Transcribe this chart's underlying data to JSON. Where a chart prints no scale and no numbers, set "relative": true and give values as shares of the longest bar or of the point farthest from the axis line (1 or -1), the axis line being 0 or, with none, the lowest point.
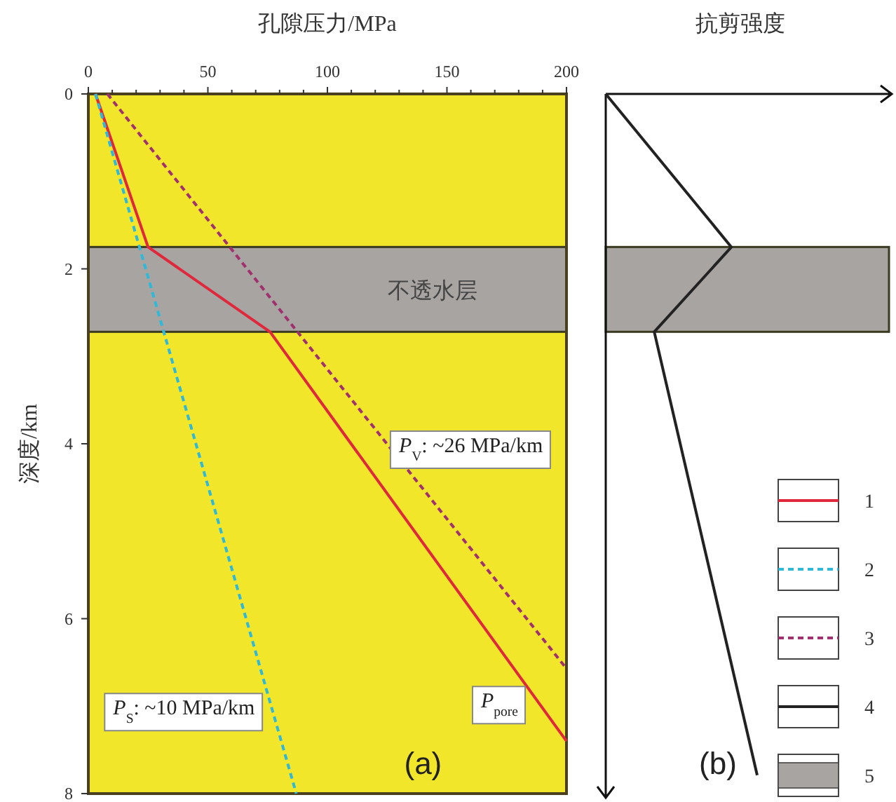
{
  "chart_data": [
    {
      "type": "line",
      "orientation": "horizontal",
      "xlabel": "孔隙压力/MPa",
      "ylabel": "深度/km",
      "xlim": [
        0,
        200
      ],
      "ylim": [
        8,
        0
      ],
      "xticks": [
        0,
        {
          "value": 10,
          "label": null
        },
        {
          "value": 20,
          "label": null
        },
        {
          "value": 30,
          "label": null
        },
        {
          "value": 40,
          "label": null
        },
        50,
        {
          "value": 60,
          "label": null
        },
        {
          "value": 70,
          "label": null
        },
        {
          "value": 80,
          "label": null
        },
        {
          "value": 90,
          "label": null
        },
        100,
        {
          "value": 110,
          "label": null
        },
        {
          "value": 120,
          "label": null
        },
        {
          "value": 130,
          "label": null
        },
        {
          "value": 140,
          "label": null
        },
        150,
        {
          "value": 160,
          "label": null
        },
        {
          "value": 170,
          "label": null
        },
        {
          "value": 180,
          "label": null
        },
        {
          "value": 190,
          "label": null
        },
        200
      ],
      "yticks": [
        0,
        2,
        4,
        6,
        8
      ],
      "legend": "right",
      "series": [
        {
          "name": "1",
          "color": "#e0283c",
          "line_style": "solid",
          "x": [
            0,
            1.75,
            2.72,
            7.4
          ],
          "values": [
            3,
            25,
            76,
            200
          ]
        },
        {
          "name": "2",
          "color": "#30b8d8",
          "line_style": "dashed",
          "x": [
            0,
            8
          ],
          "values": [
            3,
            87
          ]
        },
        {
          "name": "3",
          "color": "#a0306e",
          "line_style": "dashed",
          "x": [
            0,
            6.57
          ],
          "values": [
            8,
            200
          ]
        }
      ],
      "bands": [
        {
          "axis": "y",
          "from": 1.75,
          "to": 2.72,
          "label": "不透水层",
          "color": "#a8a4a2"
        }
      ],
      "annotations": [
        "*P*$_{V}$: ~26 MPa/km",
        "*P*$_{S}$: ~10 MPa/km",
        "*P*$_{pore}$",
        "(a)"
      ]
    },
    {
      "type": "line",
      "orientation": "horizontal",
      "relative": true,
      "xlabel": "抗剪强度",
      "ylim": [
        8,
        0
      ],
      "legend": "bottom right",
      "series": [
        {
          "name": "4",
          "color": "#222222",
          "line_style": "solid",
          "x": [
            0,
            1.75,
            2.72,
            7.79
          ],
          "values": [
            0,
            0.83,
            0.32,
            1
          ]
        }
      ],
      "bands": [
        {
          "axis": "y",
          "from": 1.75,
          "to": 2.72,
          "label": "5",
          "color": "#a8a4a2"
        }
      ],
      "annotations": [
        "(b)"
      ]
    }
  ]
}
